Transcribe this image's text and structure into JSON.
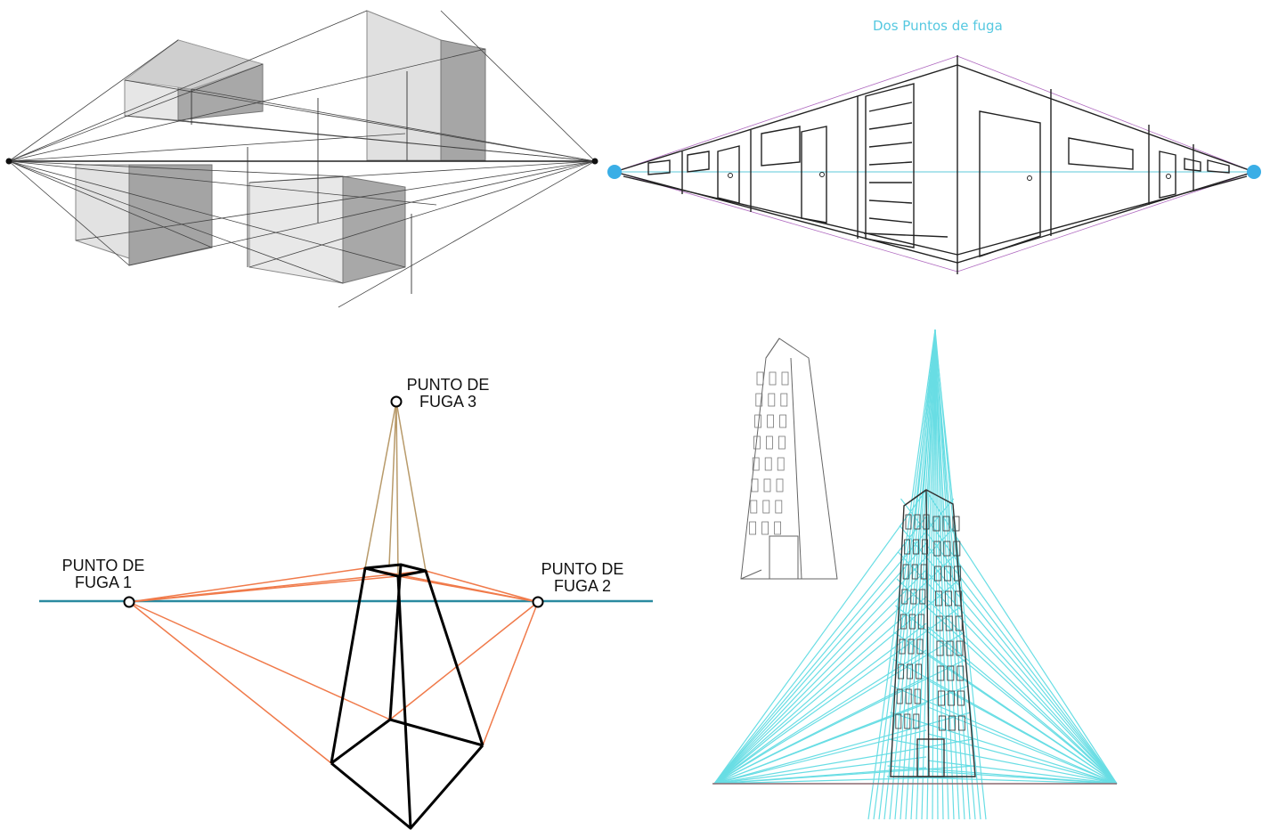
{
  "panels": {
    "top_right": {
      "title": "Dos Puntos de fuga",
      "colors": {
        "title": "#55c8e0",
        "vanishing_points": "#3aaee6",
        "guides": "#b06bc0"
      }
    },
    "bottom_left": {
      "labels": {
        "vp1_line1": "PUNTO DE",
        "vp1_line2": "FUGA 1",
        "vp2_line1": "PUNTO DE",
        "vp2_line2": "FUGA 2",
        "vp3_line1": "PUNTO DE",
        "vp3_line2": "FUGA 3"
      },
      "colors": {
        "horizon": "#2a8aa0",
        "lines_vp12": "#f07a4a",
        "lines_vp3": "#b89a6a",
        "prism": "#000000"
      }
    },
    "bottom_right": {
      "colors": {
        "guides": "#4fd8e0",
        "sketch": "#555555"
      }
    }
  }
}
